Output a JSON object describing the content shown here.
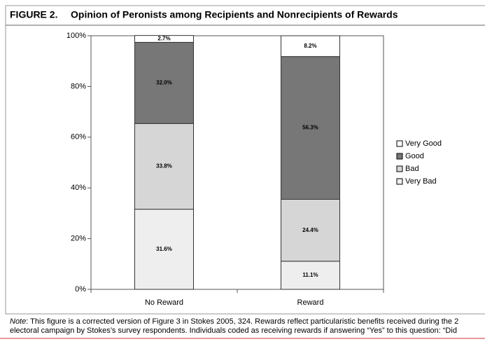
{
  "chart_data": {
    "type": "stacked_bar",
    "figure_label": "FIGURE 2.",
    "title": "Opinion of Peronists among Recipients and Nonrecipients of Rewards",
    "categories": [
      "No Reward",
      "Reward"
    ],
    "series": [
      {
        "name": "Very Bad",
        "color": "#eeeeee",
        "values": [
          31.6,
          11.1
        ],
        "value_labels": [
          "31.6%",
          "11.1%"
        ]
      },
      {
        "name": "Bad",
        "color": "#d6d6d6",
        "values": [
          33.8,
          24.4
        ],
        "value_labels": [
          "33.8%",
          "24.4%"
        ]
      },
      {
        "name": "Good",
        "color": "#777777",
        "values": [
          32.0,
          56.3
        ],
        "value_labels": [
          "32.0%",
          "56.3%"
        ]
      },
      {
        "name": "Very Good",
        "color": "#ffffff",
        "values": [
          2.7,
          8.2
        ],
        "value_labels": [
          "2.7%",
          "8.2%"
        ]
      }
    ],
    "ylim": [
      0,
      100
    ],
    "yticks": [
      {
        "value": 0,
        "label": "0%"
      },
      {
        "value": 20,
        "label": "20%"
      },
      {
        "value": 40,
        "label": "40%"
      },
      {
        "value": 60,
        "label": "60%"
      },
      {
        "value": 80,
        "label": "80%"
      },
      {
        "value": 100,
        "label": "100%"
      }
    ],
    "legend_position": "right",
    "note_label": "Note",
    "note_lines": [
      ": This figure is a corrected version of Figure 3 in Stokes 2005, 324. Rewards reflect particularistic benefits received during the 2",
      "electoral campaign by Stokes’s survey respondents. Individuals coded as receiving rewards if answering “Yes” to this question: “Did"
    ]
  }
}
